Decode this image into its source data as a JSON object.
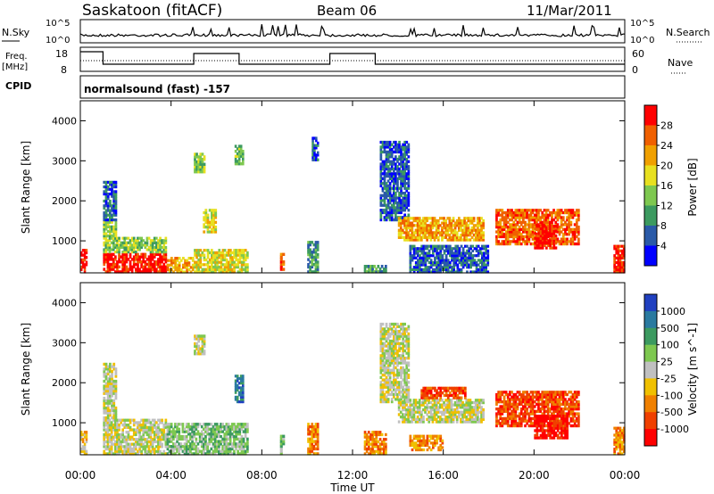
{
  "header": {
    "station": "Saskatoon (fitACF)",
    "beam": "Beam 06",
    "date": "11/Mar/2011"
  },
  "noise_panel": {
    "left_label": "N.Sky",
    "right_label": "N.Search",
    "left_ticks": [
      "10^5",
      "10^0"
    ],
    "right_ticks": [
      "10^5",
      "10^0"
    ]
  },
  "freq_panel": {
    "left_label_line1": "Freq.",
    "left_label_line2": "[MHz]",
    "right_label": "Nave",
    "left_ticks": [
      "18",
      "8"
    ],
    "right_ticks": [
      "60",
      "0"
    ]
  },
  "cpid_panel": {
    "label": "CPID",
    "text": "normalsound (fast) -157"
  },
  "colors": {
    "power_scale": [
      "#0000ff",
      "#2a5aa8",
      "#3c9a60",
      "#7ec850",
      "#e8e020",
      "#f0a000",
      "#f06000",
      "#ff0000"
    ],
    "velocity_scale": [
      "#2040c0",
      "#2a7aa0",
      "#3c9a60",
      "#7ec850",
      "#c0c0c0",
      "#f0c000",
      "#f08000",
      "#f04000",
      "#ff0000"
    ]
  },
  "chart_data": [
    {
      "type": "heatmap",
      "name": "power",
      "ylabel": "Slant Range [km]",
      "yticks": [
        "1000",
        "2000",
        "3000",
        "4000"
      ],
      "ylim": [
        200,
        4500
      ],
      "xlim": [
        0,
        24
      ],
      "colorbar": {
        "label": "Power [dB]",
        "ticks": [
          "4",
          "8",
          "12",
          "16",
          "20",
          "24",
          "28"
        ],
        "range": [
          0,
          32
        ]
      },
      "echo_regions": [
        {
          "t0": 0.0,
          "t1": 0.3,
          "r0": 200,
          "r1": 800,
          "level": 7
        },
        {
          "t0": 1.0,
          "t1": 3.8,
          "r0": 200,
          "r1": 700,
          "level": 7
        },
        {
          "t0": 1.0,
          "t1": 3.8,
          "r0": 700,
          "r1": 1100,
          "level": 3
        },
        {
          "t0": 1.0,
          "t1": 1.6,
          "r0": 1100,
          "r1": 1500,
          "level": 3
        },
        {
          "t0": 1.0,
          "t1": 1.6,
          "r0": 1500,
          "r1": 2500,
          "level": 1
        },
        {
          "t0": 3.8,
          "t1": 5.0,
          "r0": 200,
          "r1": 600,
          "level": 5
        },
        {
          "t0": 5.0,
          "t1": 7.4,
          "r0": 200,
          "r1": 800,
          "level": 4
        },
        {
          "t0": 5.0,
          "t1": 5.5,
          "r0": 2700,
          "r1": 3200,
          "level": 3
        },
        {
          "t0": 5.4,
          "t1": 6.0,
          "r0": 1200,
          "r1": 1800,
          "level": 4
        },
        {
          "t0": 6.8,
          "t1": 7.2,
          "r0": 2900,
          "r1": 3400,
          "level": 3
        },
        {
          "t0": 8.8,
          "t1": 9.0,
          "r0": 200,
          "r1": 700,
          "level": 6
        },
        {
          "t0": 10.0,
          "t1": 10.5,
          "r0": 200,
          "r1": 1000,
          "level": 2
        },
        {
          "t0": 10.2,
          "t1": 10.5,
          "r0": 3000,
          "r1": 3600,
          "level": 1
        },
        {
          "t0": 12.5,
          "t1": 13.5,
          "r0": 200,
          "r1": 400,
          "level": 2
        },
        {
          "t0": 13.2,
          "t1": 14.5,
          "r0": 1500,
          "r1": 3500,
          "level": 1
        },
        {
          "t0": 14.0,
          "t1": 17.8,
          "r0": 1000,
          "r1": 1600,
          "level": 5
        },
        {
          "t0": 14.5,
          "t1": 18.0,
          "r0": 200,
          "r1": 900,
          "level": 1
        },
        {
          "t0": 18.3,
          "t1": 22.0,
          "r0": 900,
          "r1": 1800,
          "level": 6
        },
        {
          "t0": 20.0,
          "t1": 21.0,
          "r0": 800,
          "r1": 1400,
          "level": 7
        },
        {
          "t0": 23.5,
          "t1": 24.0,
          "r0": 200,
          "r1": 900,
          "level": 7
        }
      ]
    },
    {
      "type": "heatmap",
      "name": "velocity",
      "xlabel": "Time UT",
      "ylabel": "Slant Range [km]",
      "xticks": [
        "00:00",
        "04:00",
        "08:00",
        "12:00",
        "16:00",
        "20:00",
        "00:00"
      ],
      "yticks": [
        "1000",
        "2000",
        "3000",
        "4000"
      ],
      "ylim": [
        200,
        4500
      ],
      "xlim": [
        0,
        24
      ],
      "colorbar": {
        "label": "Velocity [m s^-1]",
        "ticks": [
          "1000",
          "500",
          "100",
          "25",
          "-25",
          "-100",
          "-500",
          "-1000"
        ]
      },
      "echo_regions": [
        {
          "t0": 0.0,
          "t1": 0.3,
          "r0": 200,
          "r1": 800,
          "level": 5
        },
        {
          "t0": 1.0,
          "t1": 3.8,
          "r0": 200,
          "r1": 1100,
          "level": 4
        },
        {
          "t0": 1.0,
          "t1": 1.6,
          "r0": 1100,
          "r1": 2500,
          "level": 4
        },
        {
          "t0": 3.8,
          "t1": 7.4,
          "r0": 200,
          "r1": 1000,
          "level": 3
        },
        {
          "t0": 5.0,
          "t1": 5.5,
          "r0": 2700,
          "r1": 3200,
          "level": 4
        },
        {
          "t0": 6.8,
          "t1": 7.2,
          "r0": 1500,
          "r1": 2200,
          "level": 1
        },
        {
          "t0": 8.8,
          "t1": 9.0,
          "r0": 200,
          "r1": 700,
          "level": 3
        },
        {
          "t0": 10.0,
          "t1": 10.5,
          "r0": 200,
          "r1": 1000,
          "level": 6
        },
        {
          "t0": 12.5,
          "t1": 13.5,
          "r0": 200,
          "r1": 800,
          "level": 6
        },
        {
          "t0": 13.2,
          "t1": 14.5,
          "r0": 1500,
          "r1": 3500,
          "level": 4
        },
        {
          "t0": 14.0,
          "t1": 17.8,
          "r0": 1000,
          "r1": 1600,
          "level": 4
        },
        {
          "t0": 15.0,
          "t1": 17.0,
          "r0": 1600,
          "r1": 1900,
          "level": 7
        },
        {
          "t0": 14.5,
          "t1": 16.0,
          "r0": 300,
          "r1": 700,
          "level": 6
        },
        {
          "t0": 18.3,
          "t1": 22.0,
          "r0": 900,
          "r1": 1800,
          "level": 7
        },
        {
          "t0": 20.0,
          "t1": 21.5,
          "r0": 600,
          "r1": 1200,
          "level": 8
        },
        {
          "t0": 23.5,
          "t1": 24.0,
          "r0": 200,
          "r1": 900,
          "level": 6
        }
      ]
    }
  ]
}
